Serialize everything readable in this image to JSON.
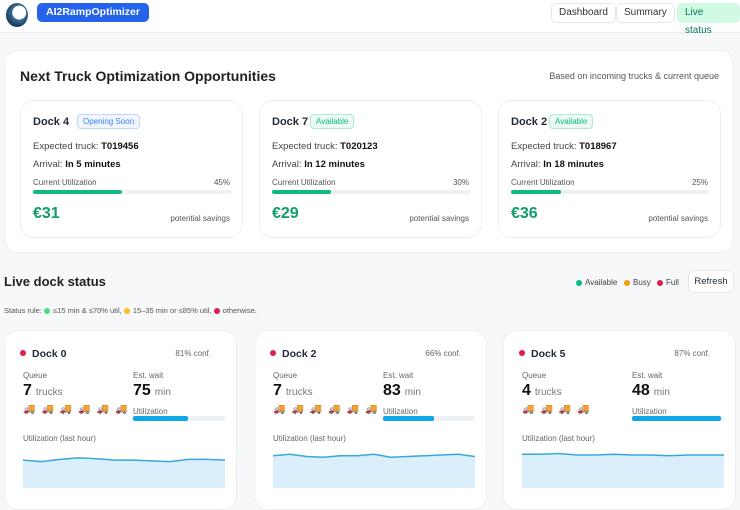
{
  "header": {
    "brand": "AI2RampOptimizer",
    "nav": [
      "Dashboard",
      "Summary",
      "Live status"
    ],
    "active": "Live status"
  },
  "opportunities": {
    "title": "Next Truck Optimization Opportunities",
    "subtitle": "Based on incoming trucks & current queue",
    "cards": [
      {
        "dock": "Dock 4",
        "badge": "Opening Soon",
        "badge_color": "#3b82f6",
        "truck_label": "Expected truck:",
        "truck": "T019456",
        "arrival_label": "Arrival:",
        "arrival": "In 5 minutes",
        "util_label": "Current Utilization",
        "util": "45%",
        "util_value": 45,
        "savings": "€31",
        "savings_label": "potential savings"
      },
      {
        "dock": "Dock 7",
        "badge": "Available",
        "badge_color": "#10b981",
        "truck_label": "Expected truck:",
        "truck": "T020123",
        "arrival_label": "Arrival:",
        "arrival": "In 12 minutes",
        "util_label": "Current Utilization",
        "util": "30%",
        "util_value": 30,
        "savings": "€29",
        "savings_label": "potential savings"
      },
      {
        "dock": "Dock 2",
        "badge": "Available",
        "badge_color": "#10b981",
        "truck_label": "Expected truck:",
        "truck": "T018967",
        "arrival_label": "Arrival:",
        "arrival": "In 18 minutes",
        "util_label": "Current Utilization",
        "util": "25%",
        "util_value": 25,
        "savings": "€36",
        "savings_label": "potential savings"
      }
    ]
  },
  "live": {
    "title": "Live dock status",
    "legend": [
      {
        "label": "Available",
        "color": "#10b981"
      },
      {
        "label": "Busy",
        "color": "#f59e0b"
      },
      {
        "label": "Full",
        "color": "#e11d48"
      }
    ],
    "refresh": "Refresh",
    "rule": {
      "prefix": "Status rule:",
      "green": "≤15 min & ≤70% util,",
      "yellow": "15–35 min or ≤85% util,",
      "red": "otherwise."
    },
    "docks": [
      {
        "name": "Dock 0",
        "status_color": "#e11d48",
        "conf": "81% conf.",
        "queue_label": "Queue",
        "queue": "7",
        "queue_unit": "trucks",
        "truck_count": 6,
        "wait_label": "Est. wait",
        "wait": "75",
        "wait_unit": "min",
        "util_label": "Utilization",
        "util_value": 60,
        "spark_label": "Utilization (last hour)",
        "history": [
          78,
          76,
          79,
          81,
          80,
          78,
          78,
          77,
          76,
          79,
          79,
          78
        ]
      },
      {
        "name": "Dock 2",
        "status_color": "#e11d48",
        "conf": "66% conf.",
        "queue_label": "Queue",
        "queue": "7",
        "queue_unit": "trucks",
        "truck_count": 6,
        "wait_label": "Est. wait",
        "wait": "83",
        "wait_unit": "min",
        "util_label": "Utilization",
        "util_value": 55,
        "spark_label": "Utilization (last hour)",
        "history": [
          84,
          86,
          83,
          82,
          84,
          84,
          86,
          82,
          83,
          84,
          85,
          86,
          83
        ]
      },
      {
        "name": "Dock 5",
        "status_color": "#e11d48",
        "conf": "87% conf.",
        "queue_label": "Queue",
        "queue": "4",
        "queue_unit": "trucks",
        "truck_count": 4,
        "wait_label": "Est. wait",
        "wait": "48",
        "wait_unit": "min",
        "util_label": "Utilization",
        "util_value": 97,
        "spark_label": "Utilization (last hour)",
        "history": [
          86,
          86,
          87,
          85,
          85,
          86,
          85,
          85,
          84,
          85,
          85,
          85
        ]
      }
    ]
  }
}
